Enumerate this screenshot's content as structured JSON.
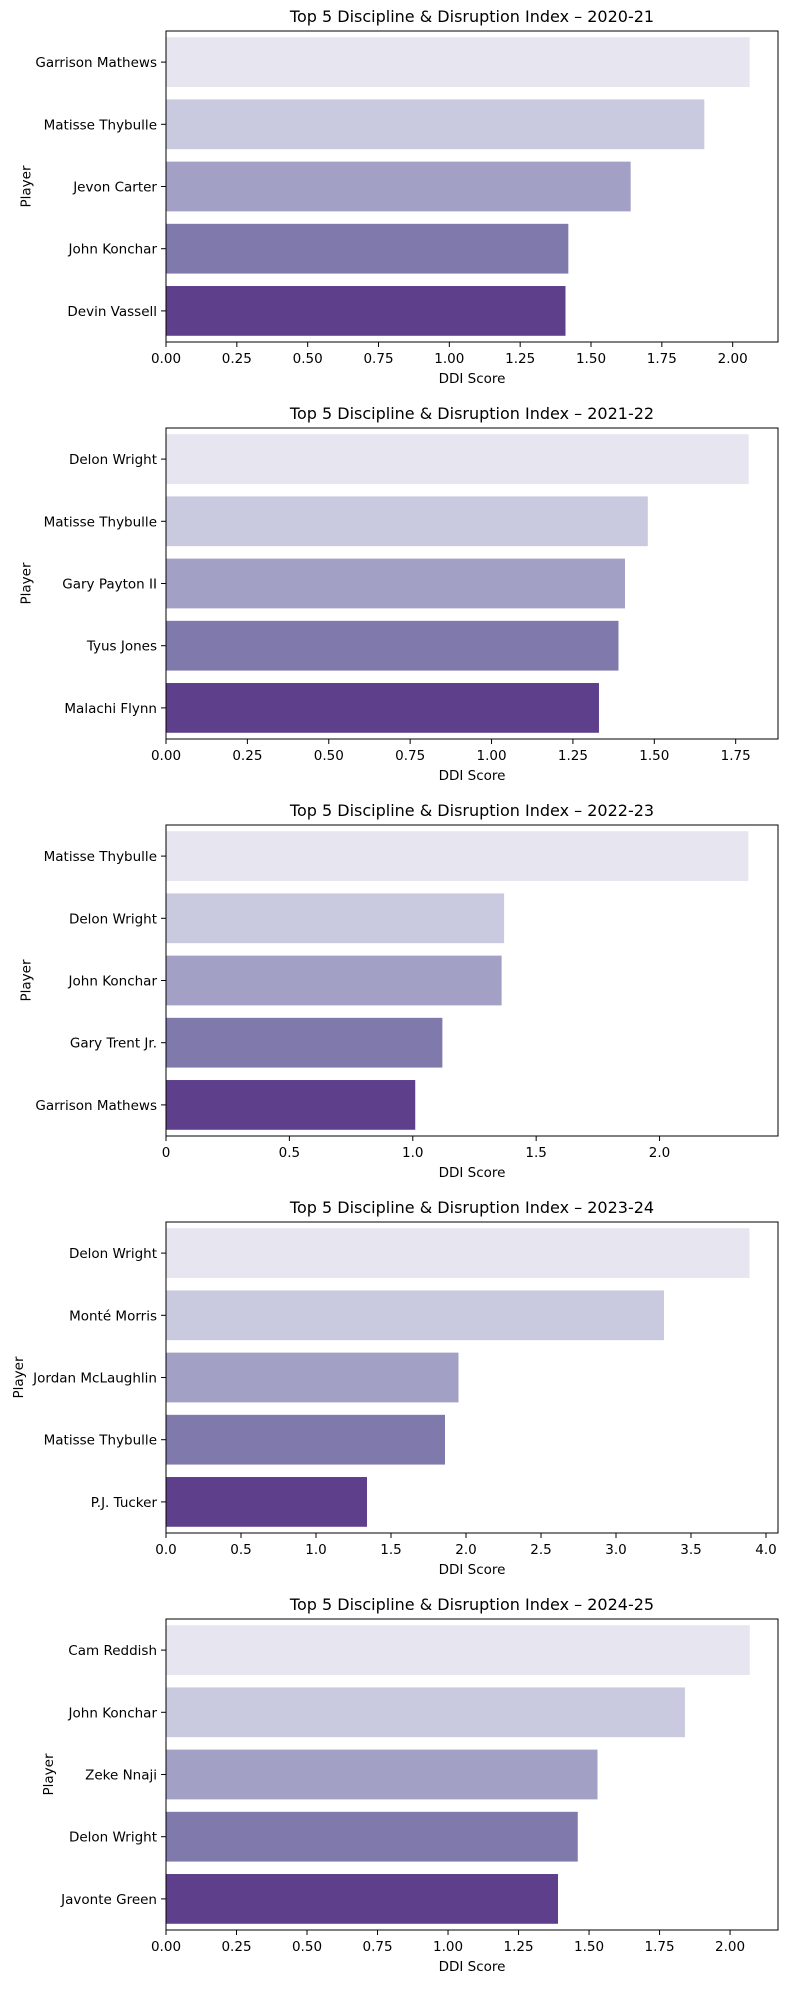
{
  "colors": [
    "#e7e5f0",
    "#c9c9e0",
    "#a3a0c5",
    "#8079ab",
    "#5e3f8b"
  ],
  "chart_data": [
    {
      "type": "bar",
      "orientation": "horizontal",
      "title": "Top 5 Discipline & Disruption Index – 2020-21",
      "xlabel": "DDI Score",
      "ylabel": "Player",
      "categories": [
        "Garrison Mathews",
        "Matisse Thybulle",
        "Jevon Carter",
        "John Konchar",
        "Devin Vassell"
      ],
      "values": [
        2.06,
        1.9,
        1.64,
        1.42,
        1.41
      ],
      "xlim": [
        0,
        2.16
      ],
      "xticks": [
        0,
        0.25,
        0.5,
        0.75,
        1.0,
        1.25,
        1.5,
        1.75,
        2.0
      ],
      "xtick_labels": [
        "0.00",
        "0.25",
        "0.50",
        "0.75",
        "1.00",
        "1.25",
        "1.50",
        "1.75",
        "2.00"
      ]
    },
    {
      "type": "bar",
      "orientation": "horizontal",
      "title": "Top 5 Discipline & Disruption Index – 2021-22",
      "xlabel": "DDI Score",
      "ylabel": "Player",
      "categories": [
        "Delon Wright",
        "Matisse Thybulle",
        "Gary Payton II",
        "Tyus Jones",
        "Malachi Flynn"
      ],
      "values": [
        1.79,
        1.48,
        1.41,
        1.39,
        1.33
      ],
      "xlim": [
        0,
        1.88
      ],
      "xticks": [
        0,
        0.25,
        0.5,
        0.75,
        1.0,
        1.25,
        1.5,
        1.75
      ],
      "xtick_labels": [
        "0.00",
        "0.25",
        "0.50",
        "0.75",
        "1.00",
        "1.25",
        "1.50",
        "1.75"
      ]
    },
    {
      "type": "bar",
      "orientation": "horizontal",
      "title": "Top 5 Discipline & Disruption Index – 2022-23",
      "xlabel": "DDI Score",
      "ylabel": "Player",
      "categories": [
        "Matisse Thybulle",
        "Delon Wright",
        "John Konchar",
        "Gary Trent Jr.",
        "Garrison Mathews"
      ],
      "values": [
        2.36,
        1.37,
        1.36,
        1.12,
        1.01
      ],
      "xlim": [
        0,
        2.48
      ],
      "xticks": [
        0,
        0.5,
        1.0,
        1.5,
        2.0
      ],
      "xtick_labels": [
        "0",
        "0.5",
        "1.0",
        "1.5",
        "2.0"
      ]
    },
    {
      "type": "bar",
      "orientation": "horizontal",
      "title": "Top 5 Discipline & Disruption Index – 2023-24",
      "xlabel": "DDI Score",
      "ylabel": "Player",
      "categories": [
        "Delon Wright",
        "Monté Morris",
        "Jordan McLaughlin",
        "Matisse Thybulle",
        "P.J. Tucker"
      ],
      "values": [
        3.89,
        3.32,
        1.95,
        1.86,
        1.34
      ],
      "xlim": [
        0,
        4.08
      ],
      "xticks": [
        0,
        0.5,
        1.0,
        1.5,
        2.0,
        2.5,
        3.0,
        3.5,
        4.0
      ],
      "xtick_labels": [
        "0.0",
        "0.5",
        "1.0",
        "1.5",
        "2.0",
        "2.5",
        "3.0",
        "3.5",
        "4.0"
      ]
    },
    {
      "type": "bar",
      "orientation": "horizontal",
      "title": "Top 5 Discipline & Disruption Index – 2024-25",
      "xlabel": "DDI Score",
      "ylabel": "Player",
      "categories": [
        "Cam Reddish",
        "John Konchar",
        "Zeke Nnaji",
        "Delon Wright",
        "Javonte Green"
      ],
      "values": [
        2.07,
        1.84,
        1.53,
        1.46,
        1.39
      ],
      "xlim": [
        0,
        2.17
      ],
      "xticks": [
        0,
        0.25,
        0.5,
        0.75,
        1.0,
        1.25,
        1.5,
        1.75,
        2.0
      ],
      "xtick_labels": [
        "0.00",
        "0.25",
        "0.50",
        "0.75",
        "1.00",
        "1.25",
        "1.50",
        "1.75",
        "2.00"
      ]
    }
  ]
}
